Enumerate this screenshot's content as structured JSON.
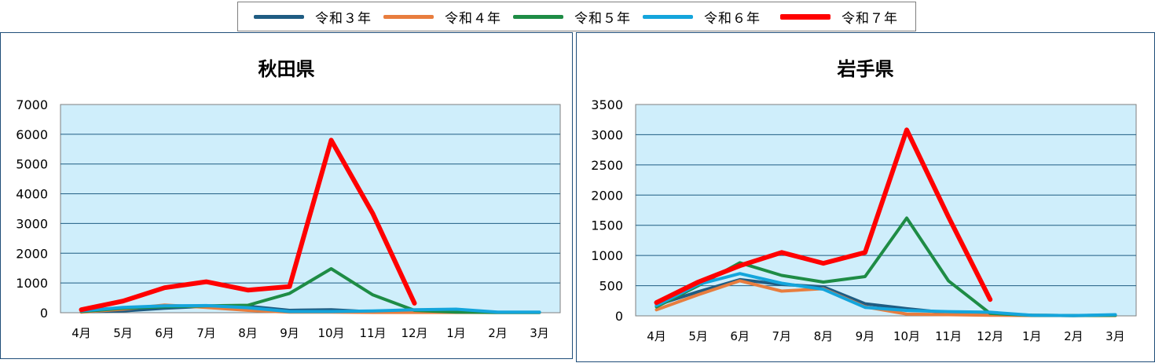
{
  "legend": {
    "items": [
      {
        "label": "令和３年",
        "color": "#1f5c82"
      },
      {
        "label": "令和４年",
        "color": "#e87d3e"
      },
      {
        "label": "令和５年",
        "color": "#1e8c45"
      },
      {
        "label": "令和６年",
        "color": "#14a5dc"
      },
      {
        "label": "令和７年",
        "color": "#ff0000"
      }
    ]
  },
  "chart_data": [
    {
      "type": "line",
      "title": "秋田県",
      "categories": [
        "4月",
        "5月",
        "6月",
        "7月",
        "8月",
        "9月",
        "10月",
        "11月",
        "12月",
        "1月",
        "2月",
        "3月"
      ],
      "ylim": [
        0,
        7000
      ],
      "yticks": [
        0,
        1000,
        2000,
        3000,
        4000,
        5000,
        6000,
        7000
      ],
      "plot_background": "#cfeefb",
      "grid": true,
      "series": [
        {
          "name": "令和３年",
          "color": "#1f5c82",
          "values": [
            30,
            60,
            150,
            220,
            220,
            80,
            100,
            30,
            30,
            20,
            10,
            10
          ]
        },
        {
          "name": "令和４年",
          "color": "#e87d3e",
          "values": [
            20,
            120,
            260,
            180,
            80,
            20,
            20,
            10,
            10,
            10,
            10,
            10
          ]
        },
        {
          "name": "令和５年",
          "color": "#1e8c45",
          "values": [
            40,
            150,
            200,
            230,
            250,
            650,
            1480,
            600,
            80,
            20,
            10,
            10
          ]
        },
        {
          "name": "令和６年",
          "color": "#14a5dc",
          "values": [
            60,
            180,
            230,
            240,
            170,
            40,
            40,
            60,
            100,
            120,
            20,
            20
          ]
        },
        {
          "name": "令和７年",
          "color": "#ff0000",
          "values": [
            100,
            390,
            840,
            1040,
            760,
            880,
            5800,
            3330,
            320,
            null,
            null,
            null
          ]
        }
      ]
    },
    {
      "type": "line",
      "title": "岩手県",
      "categories": [
        "4月",
        "5月",
        "6月",
        "7月",
        "8月",
        "9月",
        "10月",
        "11月",
        "12月",
        "1月",
        "2月",
        "3月"
      ],
      "ylim": [
        0,
        3500
      ],
      "yticks": [
        0,
        500,
        1000,
        1500,
        2000,
        2500,
        3000,
        3500
      ],
      "plot_background": "#cfeefb",
      "grid": true,
      "series": [
        {
          "name": "令和３年",
          "color": "#1f5c82",
          "values": [
            180,
            400,
            600,
            520,
            480,
            200,
            120,
            50,
            30,
            10,
            5,
            10
          ]
        },
        {
          "name": "令和４年",
          "color": "#e87d3e",
          "values": [
            100,
            350,
            580,
            410,
            450,
            150,
            30,
            20,
            10,
            5,
            5,
            5
          ]
        },
        {
          "name": "令和５年",
          "color": "#1e8c45",
          "values": [
            150,
            500,
            880,
            670,
            560,
            650,
            1620,
            580,
            40,
            10,
            5,
            10
          ]
        },
        {
          "name": "令和６年",
          "color": "#14a5dc",
          "values": [
            170,
            520,
            700,
            540,
            440,
            140,
            90,
            70,
            60,
            10,
            5,
            20
          ]
        },
        {
          "name": "令和７年",
          "color": "#ff0000",
          "values": [
            220,
            560,
            830,
            1050,
            870,
            1050,
            3080,
            1640,
            270,
            null,
            null,
            null
          ]
        }
      ]
    }
  ]
}
